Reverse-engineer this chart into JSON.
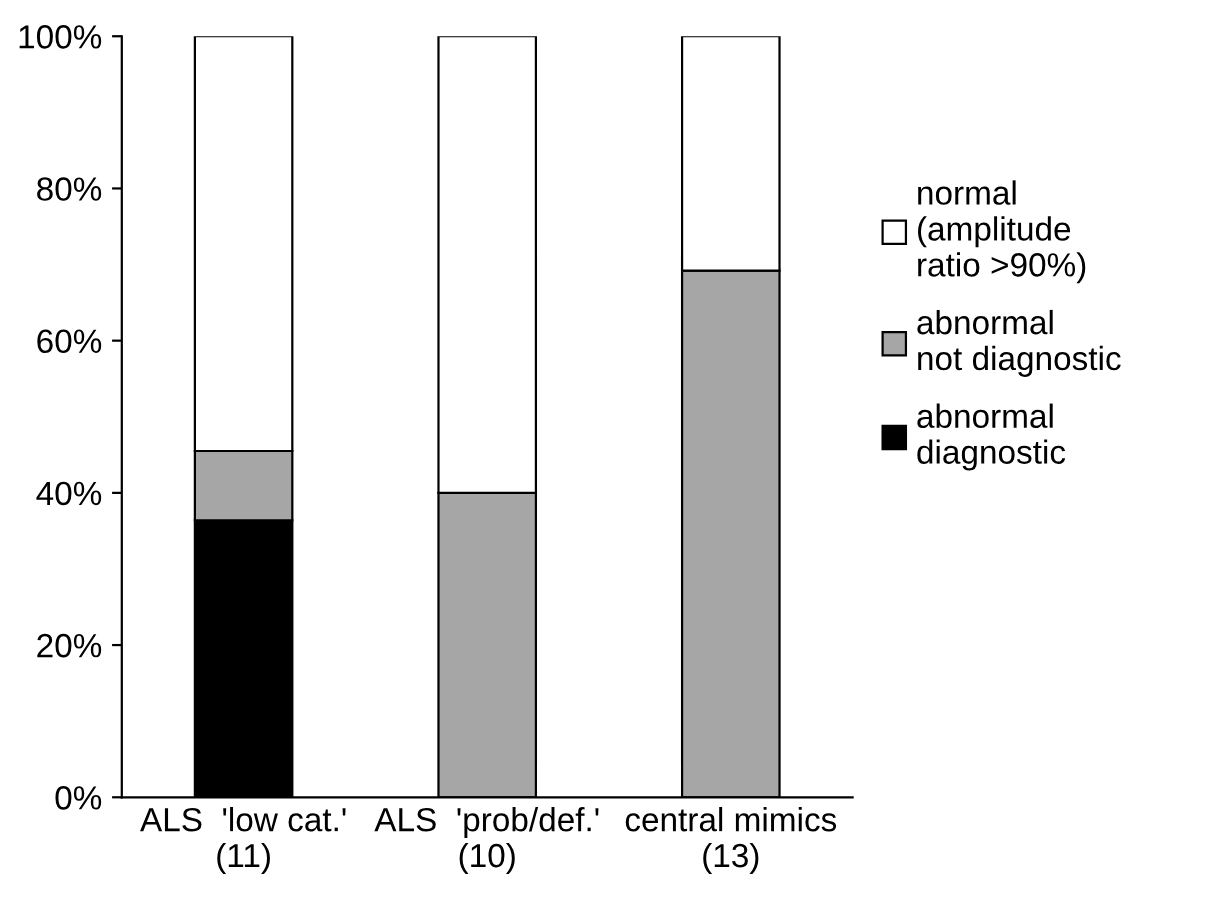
{
  "chart_data": {
    "type": "bar",
    "stacked": true,
    "categories": [
      "ALS  'low cat.'\n(11)",
      "ALS  'prob/def.'\n(10)",
      "central mimics\n(13)"
    ],
    "series": [
      {
        "name": "abnormal\ndiagnostic",
        "color": "#000000",
        "values": [
          36.4,
          0,
          0
        ]
      },
      {
        "name": "abnormal\nnot diagnostic",
        "color": "#a6a6a6",
        "values": [
          9.1,
          40,
          69.2
        ]
      },
      {
        "name": "normal\n(amplitude\nratio >90%)",
        "color": "#ffffff",
        "values": [
          54.5,
          60,
          30.8
        ]
      }
    ],
    "ylim": [
      0,
      100
    ],
    "yticks": [
      {
        "value": 0,
        "label": "0%"
      },
      {
        "value": 20,
        "label": "20%"
      },
      {
        "value": 40,
        "label": "40%"
      },
      {
        "value": 60,
        "label": "60%"
      },
      {
        "value": 80,
        "label": "80%"
      },
      {
        "value": 100,
        "label": "100%"
      }
    ],
    "grid": false,
    "legend": "right"
  }
}
